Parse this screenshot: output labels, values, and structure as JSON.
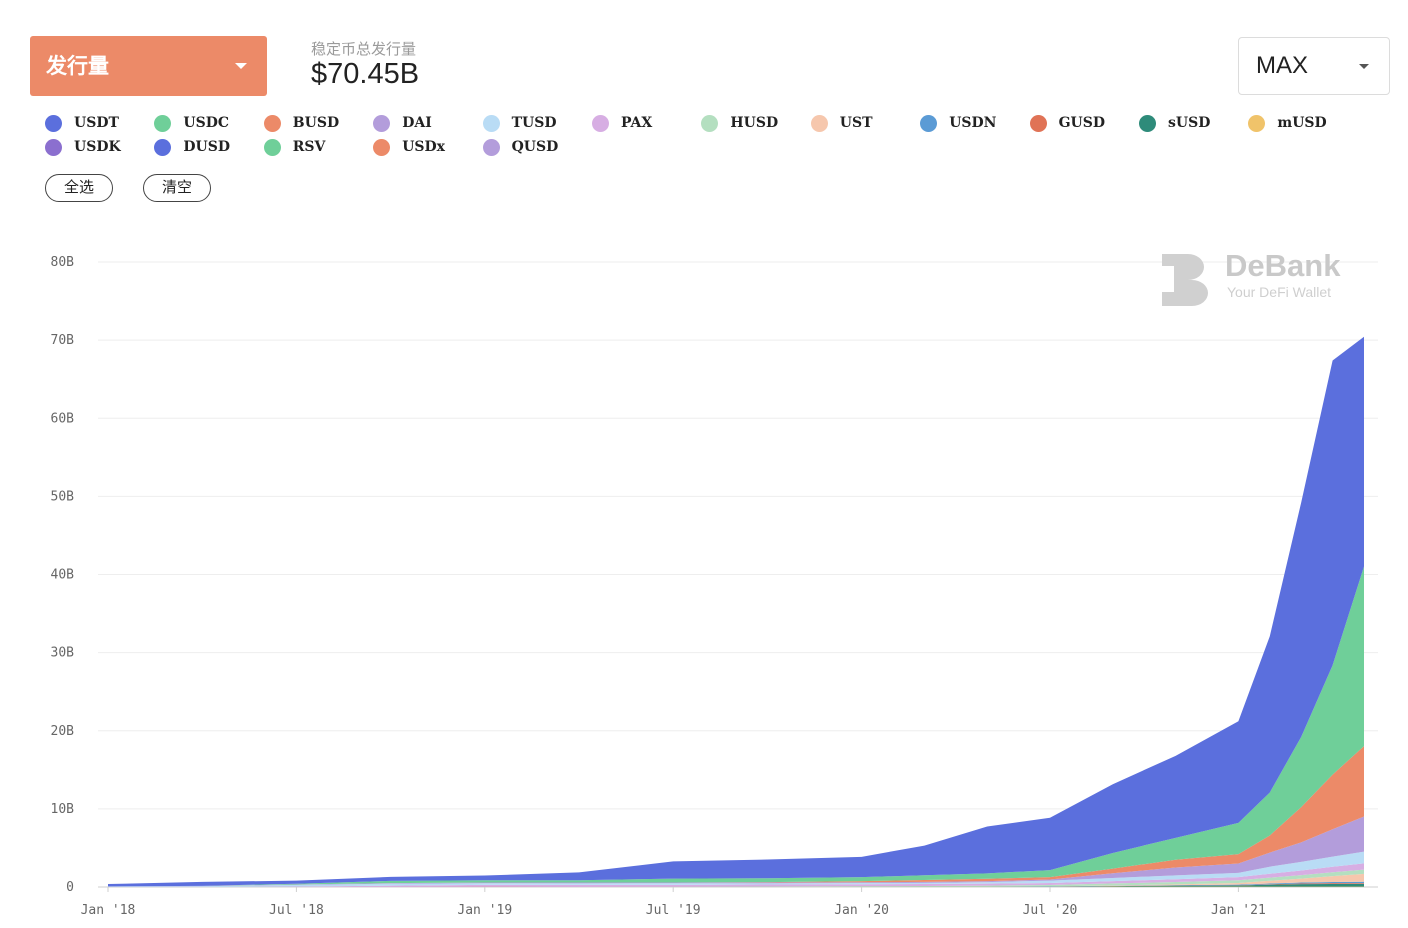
{
  "header": {
    "metric_label": "发行量",
    "total_label": "稳定币总发行量",
    "total_value": "$70.45B",
    "range_label": "MAX"
  },
  "legend": [
    {
      "name": "USDT",
      "color": "#5b6fdd"
    },
    {
      "name": "USDC",
      "color": "#6fcf99"
    },
    {
      "name": "BUSD",
      "color": "#ec8a68"
    },
    {
      "name": "DAI",
      "color": "#b39ddb"
    },
    {
      "name": "TUSD",
      "color": "#b9dcf5"
    },
    {
      "name": "PAX",
      "color": "#d7aee3"
    },
    {
      "name": "HUSD",
      "color": "#b4dfc0"
    },
    {
      "name": "UST",
      "color": "#f6c7ad"
    },
    {
      "name": "USDN",
      "color": "#5b9bd5"
    },
    {
      "name": "GUSD",
      "color": "#e07356"
    },
    {
      "name": "sUSD",
      "color": "#2e8b7a"
    },
    {
      "name": "mUSD",
      "color": "#f0c36a"
    },
    {
      "name": "USDK",
      "color": "#8b6fcf"
    },
    {
      "name": "DUSD",
      "color": "#5b6fdd"
    },
    {
      "name": "RSV",
      "color": "#6fcf99"
    },
    {
      "name": "USDx",
      "color": "#ec8a68"
    },
    {
      "name": "QUSD",
      "color": "#b39ddb"
    }
  ],
  "controls": {
    "select_all": "全选",
    "clear_all": "清空"
  },
  "brand": {
    "name": "DeBank",
    "tagline": "Your DeFi Wallet"
  },
  "chart_data": {
    "type": "area",
    "stacked": true,
    "grid": true,
    "ylim": [
      0,
      80
    ],
    "y_ticks": [
      "0",
      "10B",
      "20B",
      "30B",
      "40B",
      "50B",
      "60B",
      "70B",
      "80B"
    ],
    "x_ticks": [
      "Jan '18",
      "Jul '18",
      "Jan '19",
      "Jul '19",
      "Jan '20",
      "Jul '20",
      "Jan '21"
    ],
    "x": [
      "2018-01",
      "2018-04",
      "2018-07",
      "2018-10",
      "2019-01",
      "2019-04",
      "2019-07",
      "2019-10",
      "2020-01",
      "2020-03",
      "2020-05",
      "2020-07",
      "2020-09",
      "2020-11",
      "2021-01",
      "2021-02",
      "2021-03",
      "2021-04",
      "2021-05"
    ],
    "series": [
      {
        "name": "mUSD",
        "color": "#f0c36a",
        "values": [
          0,
          0,
          0,
          0,
          0,
          0,
          0,
          0,
          0,
          0,
          0,
          0,
          0.05,
          0.05,
          0.05,
          0.05,
          0.05,
          0.05,
          0.05
        ]
      },
      {
        "name": "sUSD",
        "color": "#2e8b7a",
        "values": [
          0,
          0,
          0,
          0,
          0,
          0,
          0,
          0,
          0.01,
          0.01,
          0.01,
          0.02,
          0.06,
          0.12,
          0.15,
          0.25,
          0.32,
          0.34,
          0.35
        ]
      },
      {
        "name": "GUSD",
        "color": "#e07356",
        "values": [
          0,
          0,
          0.02,
          0.02,
          0.03,
          0.02,
          0.02,
          0.02,
          0.02,
          0.02,
          0.02,
          0.02,
          0.02,
          0.02,
          0.03,
          0.05,
          0.08,
          0.1,
          0.1
        ]
      },
      {
        "name": "USDN",
        "color": "#5b9bd5",
        "values": [
          0,
          0,
          0,
          0,
          0,
          0,
          0,
          0,
          0,
          0,
          0,
          0.02,
          0.03,
          0.05,
          0.08,
          0.1,
          0.12,
          0.15,
          0.18
        ]
      },
      {
        "name": "UST",
        "color": "#f6c7ad",
        "values": [
          0,
          0,
          0,
          0,
          0,
          0,
          0,
          0,
          0,
          0,
          0,
          0,
          0.05,
          0.1,
          0.2,
          0.35,
          0.5,
          0.75,
          1.0
        ]
      },
      {
        "name": "HUSD",
        "color": "#b4dfc0",
        "values": [
          0,
          0,
          0,
          0,
          0,
          0,
          0.01,
          0.05,
          0.08,
          0.1,
          0.15,
          0.2,
          0.25,
          0.3,
          0.35,
          0.4,
          0.45,
          0.5,
          0.55
        ]
      },
      {
        "name": "PAX",
        "color": "#d7aee3",
        "values": [
          0,
          0,
          0.05,
          0.15,
          0.25,
          0.25,
          0.25,
          0.25,
          0.25,
          0.25,
          0.25,
          0.25,
          0.3,
          0.35,
          0.4,
          0.5,
          0.6,
          0.7,
          0.8
        ]
      },
      {
        "name": "TUSD",
        "color": "#b9dcf5",
        "values": [
          0.05,
          0.1,
          0.2,
          0.25,
          0.2,
          0.2,
          0.2,
          0.15,
          0.15,
          0.15,
          0.2,
          0.3,
          0.4,
          0.5,
          0.55,
          0.9,
          1.1,
          1.3,
          1.5
        ]
      },
      {
        "name": "DAI",
        "color": "#b39ddb",
        "values": [
          0.03,
          0.05,
          0.05,
          0.07,
          0.09,
          0.1,
          0.1,
          0.1,
          0.1,
          0.12,
          0.12,
          0.15,
          0.6,
          1.0,
          1.2,
          1.8,
          2.5,
          3.5,
          4.5
        ]
      },
      {
        "name": "BUSD",
        "color": "#ec8a68",
        "values": [
          0,
          0,
          0,
          0,
          0,
          0,
          0,
          0.05,
          0.15,
          0.25,
          0.3,
          0.3,
          0.6,
          1.0,
          1.2,
          2.2,
          4.5,
          7.0,
          9.0
        ]
      },
      {
        "name": "USDC",
        "color": "#6fcf99",
        "values": [
          0,
          0,
          0.1,
          0.3,
          0.3,
          0.3,
          0.5,
          0.5,
          0.5,
          0.6,
          0.7,
          0.9,
          2.0,
          2.8,
          4.0,
          5.5,
          9.0,
          14.0,
          23.0
        ]
      },
      {
        "name": "USDT",
        "color": "#5b6fdd",
        "values": [
          0.3,
          0.5,
          0.4,
          0.5,
          0.6,
          1.0,
          2.2,
          2.4,
          2.6,
          3.8,
          6.0,
          6.7,
          8.8,
          10.5,
          13.0,
          20.0,
          30.0,
          39.0,
          29.4
        ]
      }
    ]
  }
}
